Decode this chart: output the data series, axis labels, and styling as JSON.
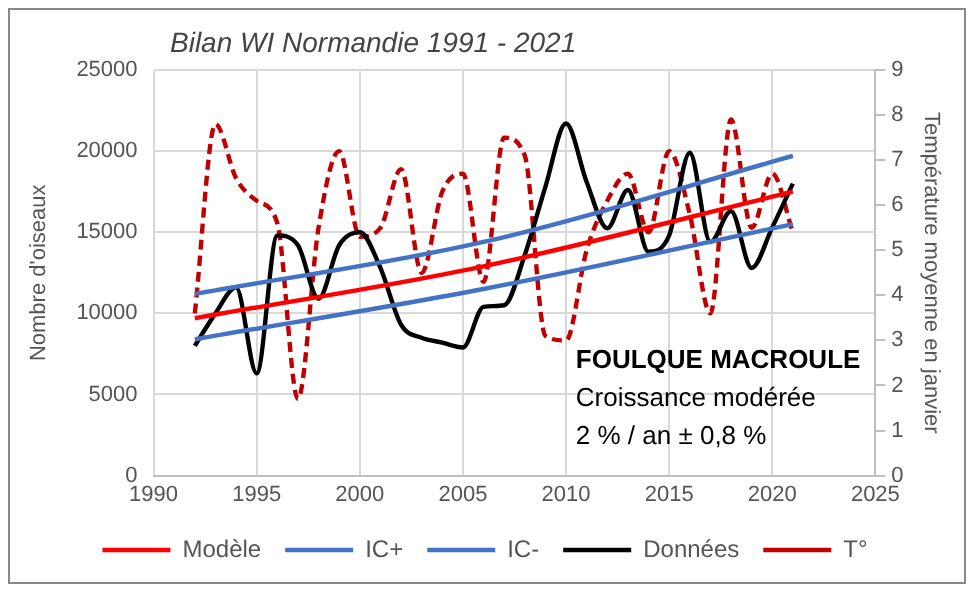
{
  "chart_data": {
    "type": "line",
    "title": "Bilan WI Normandie 1991 - 2021",
    "ylabel": "Nombre d'oiseaux",
    "y2label": "Température moyenne en janvier",
    "annotations": [
      "FOULQUE MACROULE",
      "Croissance modérée",
      "2 % / an ± 0,8 %"
    ],
    "xlim": [
      1990,
      2025
    ],
    "xticks": [
      1990,
      1995,
      2000,
      2005,
      2010,
      2015,
      2020,
      2025
    ],
    "ylim": [
      0,
      25000
    ],
    "yticks": [
      0,
      5000,
      10000,
      15000,
      20000,
      25000
    ],
    "y2lim": [
      0,
      9
    ],
    "y2ticks": [
      0,
      1,
      2,
      3,
      4,
      5,
      6,
      7,
      8,
      9
    ],
    "grid": true,
    "legend": "bottom",
    "marker": "none",
    "series": [
      {
        "name": "Modèle",
        "color": "#ff0000",
        "line_style": "solid",
        "x": [
          1992,
          2006,
          2021
        ],
        "values": [
          9700,
          12900,
          17500
        ]
      },
      {
        "name": "IC+",
        "color": "#4472c4",
        "line_style": "solid",
        "x": [
          1992,
          2006,
          2021
        ],
        "values": [
          11200,
          14400,
          19700
        ]
      },
      {
        "name": "IC-",
        "color": "#4472c4",
        "line_style": "solid",
        "x": [
          1992,
          2006,
          2021
        ],
        "values": [
          8400,
          11500,
          15500
        ]
      },
      {
        "name": "Données",
        "color": "#000000",
        "line_style": "solid",
        "x": [
          1992,
          1993,
          1994,
          1995,
          1996,
          1997,
          1998,
          1999,
          2000,
          2001,
          2002,
          2003,
          2004,
          2005,
          2006,
          2007,
          2008,
          2009,
          2010,
          2011,
          2012,
          2013,
          2014,
          2015,
          2016,
          2017,
          2018,
          2019,
          2020,
          2021
        ],
        "values": [
          8000,
          10000,
          11600,
          6300,
          14800,
          14200,
          10900,
          14200,
          15000,
          12800,
          9300,
          8500,
          8200,
          7900,
          10400,
          10500,
          13600,
          17800,
          21700,
          18100,
          15250,
          17600,
          13800,
          14800,
          19900,
          14400,
          16300,
          12800,
          15300,
          18000
        ]
      },
      {
        "name": "T°",
        "color": "#c00000",
        "line_style": "dashed",
        "axis": "y2",
        "x": [
          1992,
          1993,
          1994,
          1995,
          1996,
          1997,
          1998,
          1999,
          2000,
          2001,
          2002,
          2003,
          2004,
          2005,
          2006,
          2007,
          2008,
          2009,
          2010,
          2011,
          2012,
          2013,
          2014,
          2015,
          2016,
          2017,
          2018,
          2019,
          2020,
          2021
        ],
        "values": [
          3.6,
          7.8,
          6.6,
          6.1,
          5.6,
          1.7,
          5.5,
          7.2,
          5.3,
          5.5,
          6.8,
          4.5,
          6.3,
          6.7,
          4.3,
          7.5,
          7.1,
          3.1,
          3.0,
          5.0,
          6.1,
          6.7,
          5.4,
          7.2,
          5.8,
          3.6,
          7.9,
          5.5,
          6.7,
          5.4
        ]
      }
    ]
  }
}
